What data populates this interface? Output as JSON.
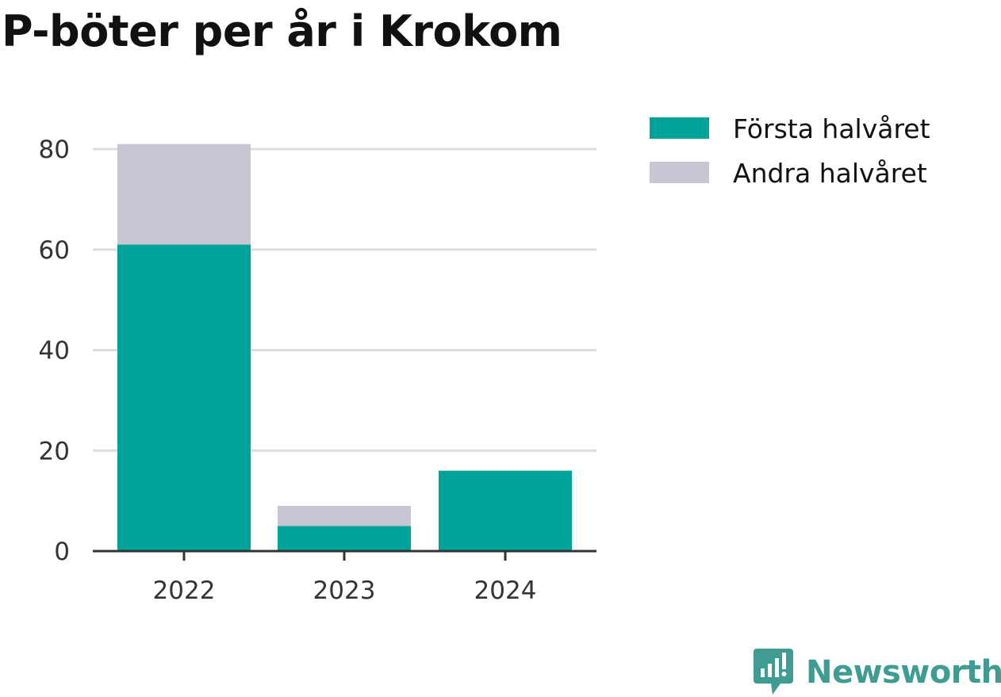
{
  "chart_data": {
    "type": "bar",
    "stacked": true,
    "title": "P-böter per år i Krokom",
    "xlabel": "",
    "ylabel": "",
    "categories": [
      "2022",
      "2023",
      "2024"
    ],
    "series": [
      {
        "name": "Första halvåret",
        "color": "#00a39a",
        "values": [
          61,
          5,
          16
        ]
      },
      {
        "name": "Andra halvåret",
        "color": "#c8c6d3",
        "values": [
          20,
          4,
          0
        ]
      }
    ],
    "ylim": [
      0,
      80
    ],
    "yticks": [
      0,
      20,
      40,
      60,
      80
    ],
    "grid": true,
    "legend": "top-right"
  },
  "brand": {
    "name": "Newsworthy",
    "icon": "newsworthy-logo-icon"
  }
}
